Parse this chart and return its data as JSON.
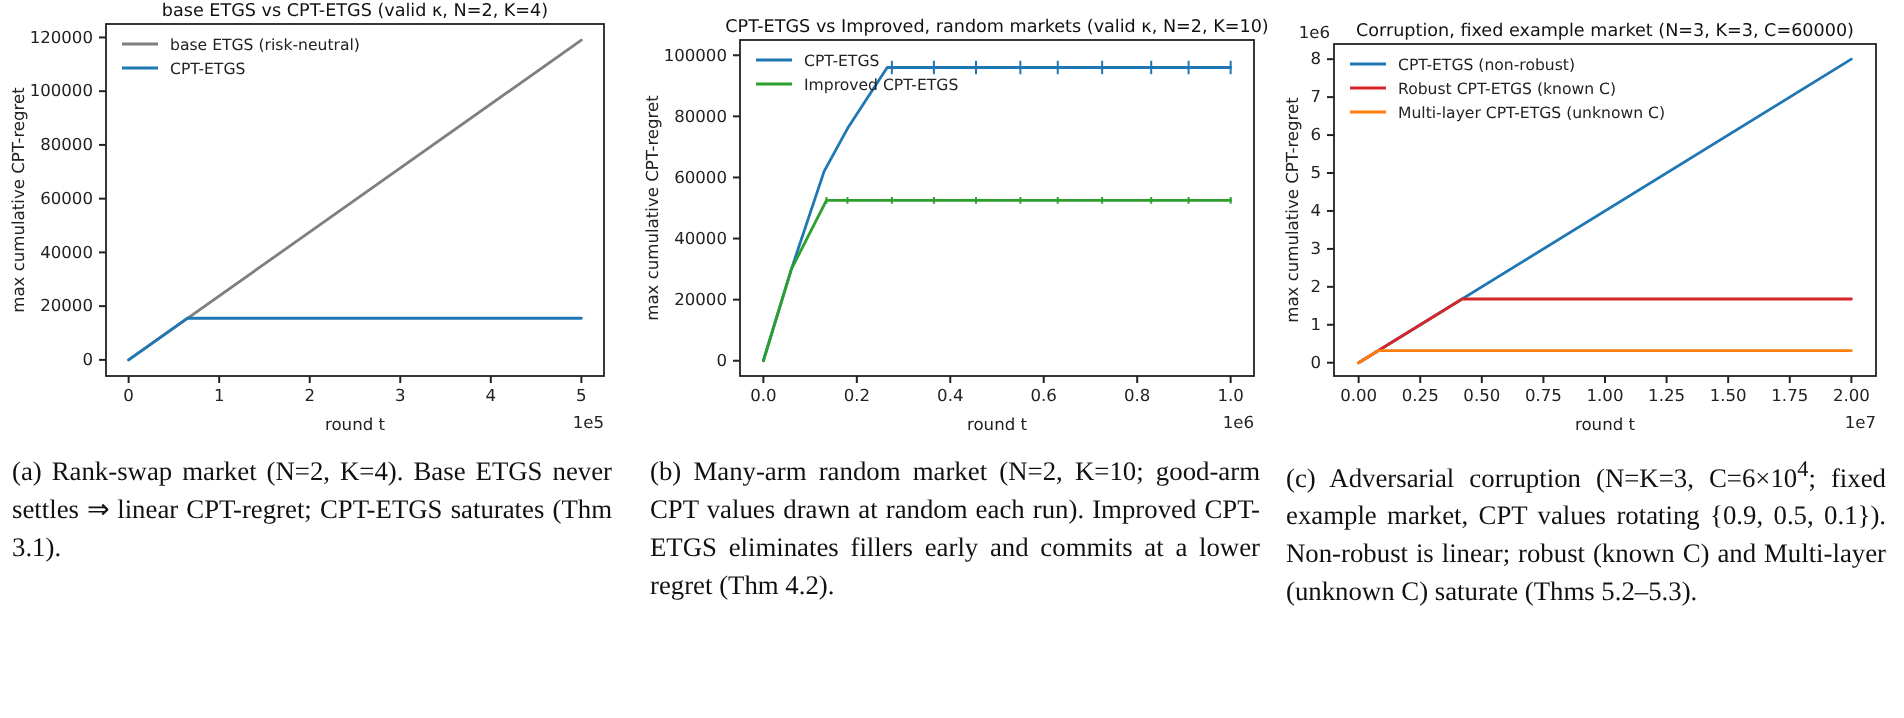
{
  "chart_data": [
    {
      "type": "line",
      "title": "base ETGS vs CPT-ETGS  (valid κ, N=2, K=4)",
      "xlabel": "round t",
      "ylabel": "max cumulative CPT-regret",
      "xlim": [
        -0.25,
        5.25
      ],
      "xticks": [
        0,
        1,
        2,
        3,
        4,
        5
      ],
      "ylim": [
        -6000,
        125000
      ],
      "yticks": [
        0,
        20000,
        40000,
        60000,
        80000,
        100000,
        120000
      ],
      "legend": "top left",
      "annotations": [
        "1e5",
        "(a) Rank-swap market (N=2, K=4). Base ETGS never settles ⇒ linear CPT-regret; CPT-ETGS saturates (Thm 3.1)."
      ],
      "series": [
        {
          "name": "base ETGS (risk-neutral)",
          "color": "#7f7f7f",
          "x": [
            0,
            5
          ],
          "values": [
            0,
            119000
          ]
        },
        {
          "name": "CPT-ETGS",
          "color": "#1f77b4",
          "x": [
            0,
            0.65,
            5
          ],
          "values": [
            0,
            15500,
            15500
          ]
        }
      ]
    },
    {
      "type": "line",
      "title": "CPT-ETGS vs Improved, random markets  (valid κ, N=2, K=10)",
      "xlabel": "round t",
      "ylabel": "max cumulative CPT-regret",
      "xlim": [
        -0.05,
        1.05
      ],
      "xticks": [
        {
          "value": 0,
          "label": "0.0"
        },
        0.2,
        0.4,
        0.6,
        0.8,
        {
          "value": 1,
          "label": "1.0"
        }
      ],
      "ylim": [
        -5000,
        105000
      ],
      "yticks": [
        0,
        20000,
        40000,
        60000,
        80000,
        100000
      ],
      "legend": "top left",
      "annotations": [
        "1e6",
        "(b) Many-arm random market (N=2, K=10; good-arm CPT values drawn at random each run). Improved CPT-ETGS eliminates fillers early and commits at a lower regret (Thm 4.2)."
      ],
      "series": [
        {
          "name": "CPT-ETGS",
          "color": "#1f77b4",
          "x": [
            0,
            0.06,
            0.13,
            0.18,
            0.265,
            0.275,
            0.365,
            0.455,
            0.55,
            0.63,
            0.725,
            0.83,
            0.91,
            1.0
          ],
          "values": [
            0,
            30000,
            62000,
            76000,
            96000,
            96000,
            96000,
            96000,
            96000,
            96000,
            96000,
            96000,
            96000,
            96000
          ],
          "errors": [
            null,
            null,
            null,
            null,
            null,
            2200,
            2200,
            2200,
            2200,
            2200,
            2200,
            2200,
            2200,
            2200
          ]
        },
        {
          "name": "Improved CPT-ETGS",
          "color": "#2ca02c",
          "x": [
            0,
            0.06,
            0.135,
            0.18,
            0.275,
            0.365,
            0.455,
            0.55,
            0.63,
            0.725,
            0.83,
            0.91,
            1.0
          ],
          "values": [
            0,
            30000,
            52500,
            52500,
            52500,
            52500,
            52500,
            52500,
            52500,
            52500,
            52500,
            52500,
            52500
          ],
          "errors": [
            null,
            null,
            1100,
            1100,
            1100,
            1100,
            1100,
            1100,
            1100,
            1100,
            1100,
            1100,
            1100
          ]
        }
      ]
    },
    {
      "type": "line",
      "title": "Corruption, fixed example market  (N=3, K=3, C=60000)",
      "xlabel": "round t",
      "ylabel": "max cumulative CPT-regret",
      "xlim": [
        -0.1,
        2.1
      ],
      "xticks": [
        {
          "value": 0,
          "label": "0.00"
        },
        0.25,
        {
          "value": 0.5,
          "label": "0.50"
        },
        0.75,
        {
          "value": 1,
          "label": "1.00"
        },
        1.25,
        {
          "value": 1.5,
          "label": "1.50"
        },
        1.75,
        {
          "value": 2,
          "label": "2.00"
        }
      ],
      "ylim": [
        -0.35,
        8.4
      ],
      "yticks": [
        0,
        1,
        2,
        3,
        4,
        5,
        6,
        7,
        8
      ],
      "legend": "top left",
      "annotations": [
        "1e6",
        "1e7",
        "(c) Adversarial corruption (N=K=3, C=6×10$^{4}$; fixed example market, CPT values rotating {0.9, 0.5, 0.1}). Non-robust is linear; robust (known C) and Multi-layer (unknown C) saturate (Thms 5.2–5.3)."
      ],
      "series": [
        {
          "name": "CPT-ETGS (non-robust)",
          "color": "#1f77b4",
          "x": [
            0,
            2
          ],
          "values": [
            0,
            8
          ]
        },
        {
          "name": "Robust CPT-ETGS (known C)",
          "color": "#d62728",
          "x": [
            0,
            0.42,
            2
          ],
          "values": [
            0,
            1.68,
            1.68
          ]
        },
        {
          "name": "Multi-layer CPT-ETGS (unknown C)",
          "color": "#ff7f0e",
          "x": [
            0,
            0.08,
            2
          ],
          "values": [
            0,
            0.32,
            0.32
          ]
        }
      ]
    }
  ]
}
